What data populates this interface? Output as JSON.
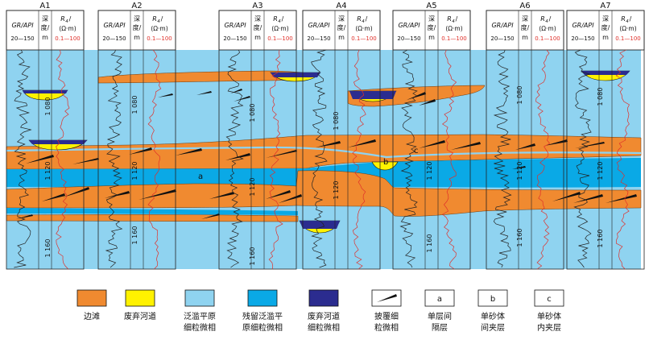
{
  "wells": [
    {
      "name": "A1",
      "depth_ticks": [
        "1 080",
        "1 120",
        "1 160"
      ]
    },
    {
      "name": "A2",
      "depth_ticks": [
        "1 080",
        "1 120",
        "1 160"
      ]
    },
    {
      "name": "A3",
      "depth_ticks": [
        "1 080",
        "1 120",
        "1 160"
      ]
    },
    {
      "name": "A4",
      "depth_ticks": [
        "1 080",
        "1 120"
      ]
    },
    {
      "name": "A5",
      "depth_ticks": [
        "1 120",
        "1 160"
      ]
    },
    {
      "name": "A6",
      "depth_ticks": [
        "1 080",
        "1 120",
        "1 160"
      ]
    },
    {
      "name": "A7",
      "depth_ticks": [
        "1 080",
        "1 120",
        "1 160"
      ]
    }
  ],
  "track_header": {
    "gr_label": "GR/API",
    "gr_range": "20—150",
    "depth_label_1": "深",
    "depth_label_2": "度/",
    "depth_unit": "m",
    "rt_label": "R",
    "rt_subscript": "4",
    "rt_slash": "/",
    "rt_unit": "(Ω·m)",
    "rt_range": "0.1—100"
  },
  "annotations": {
    "a": "a",
    "b": "b",
    "c": "c"
  },
  "legend": [
    {
      "key": "bar-edge",
      "label_line1": "边滩",
      "label_line2": "",
      "swatch": "orange"
    },
    {
      "key": "abandoned-channel",
      "label_line1": "废弃河道",
      "label_line2": "",
      "swatch": "yellow"
    },
    {
      "key": "floodplain-fine",
      "label_line1": "泛滥平原",
      "label_line2": "细粒微相",
      "swatch": "lightblue"
    },
    {
      "key": "residual-floodplain",
      "label_line1": "残留泛滥平",
      "label_line2": "原细粒微相",
      "swatch": "blue"
    },
    {
      "key": "abandoned-channel-fine",
      "label_line1": "废弃河道",
      "label_line2": "细粒微相",
      "swatch": "navy"
    },
    {
      "key": "drape-fine",
      "label_line1": "披覆细",
      "label_line2": "粒微相",
      "swatch": "drape"
    },
    {
      "key": "interlayer-between",
      "label_line1": "单层间",
      "label_line2": "隔层",
      "swatch": "box",
      "box_letter": "a"
    },
    {
      "key": "interlayer-sandbody",
      "label_line1": "单砂体",
      "label_line2": "间夹层",
      "swatch": "box",
      "box_letter": "b"
    },
    {
      "key": "interlayer-within",
      "label_line1": "单砂体",
      "label_line2": "内夹层",
      "swatch": "box",
      "box_letter": "c"
    }
  ],
  "colors": {
    "orange": "#F08A30",
    "yellow": "#FFF200",
    "lightblue": "#8FD3F0",
    "blue": "#0AA9E6",
    "navy": "#2B2C8F",
    "frame": "#222222",
    "gr_curve": "#222222",
    "rt_curve": "#E0302A"
  }
}
